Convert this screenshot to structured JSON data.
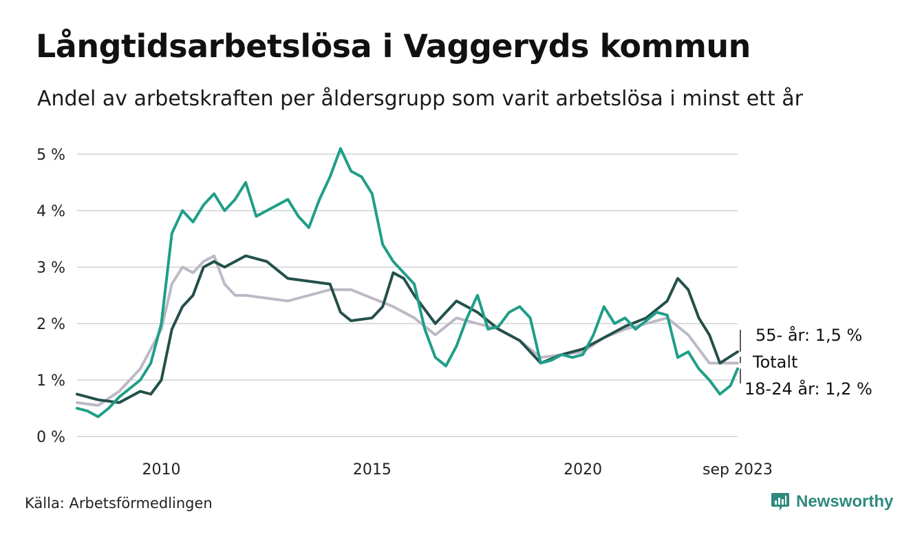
{
  "header": {
    "title": "Långtidsarbetslösa i Vaggeryds kommun",
    "subtitle": "Andel av arbetskraften per åldersgrupp som varit arbetslösa i minst ett år"
  },
  "footer": {
    "source": "Källa: Arbetsförmedlingen",
    "brand": "Newsworthy"
  },
  "colors": {
    "age_18_24": "#1f9e89",
    "age_55": "#23504a",
    "total": "#bdb9c6",
    "grid": "#dddddd"
  },
  "chart_data": {
    "type": "line",
    "title": "Långtidsarbetslösa i Vaggeryds kommun",
    "subtitle": "Andel av arbetskraften per åldersgrupp som varit arbetslösa i minst ett år",
    "ylim": [
      0,
      5
    ],
    "yticks": [
      0,
      1,
      2,
      3,
      4,
      5
    ],
    "ytick_labels": [
      "0 %",
      "1 %",
      "2 %",
      "3 %",
      "4 %",
      "5 %"
    ],
    "xlim": [
      2008.0,
      2023.67
    ],
    "xticks": [
      2010,
      2015,
      2020,
      2023.67
    ],
    "xtick_labels": [
      "2010",
      "2015",
      "2020",
      "sep 2023"
    ],
    "grid": true,
    "series": [
      {
        "name": "Totalt",
        "label": "Totalt",
        "color": "#bdb9c6",
        "x": [
          2008.0,
          2008.5,
          2009.0,
          2009.5,
          2010.0,
          2010.25,
          2010.5,
          2010.75,
          2011.0,
          2011.25,
          2011.5,
          2011.75,
          2012.0,
          2012.5,
          2013.0,
          2013.5,
          2014.0,
          2014.5,
          2015.0,
          2015.5,
          2016.0,
          2016.5,
          2017.0,
          2017.5,
          2018.0,
          2018.5,
          2019.0,
          2019.5,
          2020.0,
          2020.5,
          2021.0,
          2021.5,
          2022.0,
          2022.5,
          2023.0,
          2023.67
        ],
        "values": [
          0.6,
          0.55,
          0.8,
          1.2,
          1.9,
          2.7,
          3.0,
          2.9,
          3.1,
          3.2,
          2.7,
          2.5,
          2.5,
          2.45,
          2.4,
          2.5,
          2.6,
          2.6,
          2.45,
          2.3,
          2.1,
          1.8,
          2.1,
          2.0,
          1.9,
          1.7,
          1.4,
          1.45,
          1.5,
          1.75,
          1.9,
          2.0,
          2.1,
          1.8,
          1.3,
          1.3
        ]
      },
      {
        "name": "55- år",
        "label": "55- år: 1,5 %",
        "color": "#23504a",
        "x": [
          2008.0,
          2008.5,
          2009.0,
          2009.5,
          2009.75,
          2010.0,
          2010.25,
          2010.5,
          2010.75,
          2011.0,
          2011.25,
          2011.5,
          2011.75,
          2012.0,
          2012.5,
          2013.0,
          2013.5,
          2014.0,
          2014.25,
          2014.5,
          2015.0,
          2015.25,
          2015.5,
          2015.75,
          2016.0,
          2016.5,
          2017.0,
          2017.5,
          2018.0,
          2018.5,
          2019.0,
          2019.5,
          2020.0,
          2020.5,
          2021.0,
          2021.5,
          2022.0,
          2022.25,
          2022.5,
          2022.75,
          2023.0,
          2023.25,
          2023.67
        ],
        "values": [
          0.75,
          0.65,
          0.6,
          0.8,
          0.75,
          1.0,
          1.9,
          2.3,
          2.5,
          3.0,
          3.1,
          3.0,
          3.1,
          3.2,
          3.1,
          2.8,
          2.75,
          2.7,
          2.2,
          2.05,
          2.1,
          2.3,
          2.9,
          2.8,
          2.5,
          2.0,
          2.4,
          2.2,
          1.9,
          1.7,
          1.3,
          1.45,
          1.55,
          1.75,
          1.95,
          2.1,
          2.4,
          2.8,
          2.6,
          2.1,
          1.8,
          1.3,
          1.5
        ]
      },
      {
        "name": "18-24 år",
        "label": "18-24 år: 1,2 %",
        "color": "#1f9e89",
        "x": [
          2008.0,
          2008.25,
          2008.5,
          2008.75,
          2009.0,
          2009.25,
          2009.5,
          2009.75,
          2010.0,
          2010.25,
          2010.5,
          2010.75,
          2011.0,
          2011.25,
          2011.5,
          2011.75,
          2012.0,
          2012.25,
          2012.5,
          2012.75,
          2013.0,
          2013.25,
          2013.5,
          2013.75,
          2014.0,
          2014.25,
          2014.5,
          2014.75,
          2015.0,
          2015.25,
          2015.5,
          2015.75,
          2016.0,
          2016.25,
          2016.5,
          2016.75,
          2017.0,
          2017.25,
          2017.5,
          2017.75,
          2018.0,
          2018.25,
          2018.5,
          2018.75,
          2019.0,
          2019.25,
          2019.5,
          2019.75,
          2020.0,
          2020.25,
          2020.5,
          2020.75,
          2021.0,
          2021.25,
          2021.5,
          2021.75,
          2022.0,
          2022.25,
          2022.5,
          2022.75,
          2023.0,
          2023.25,
          2023.5,
          2023.67
        ],
        "values": [
          0.5,
          0.45,
          0.35,
          0.5,
          0.7,
          0.85,
          1.0,
          1.3,
          2.0,
          3.6,
          4.0,
          3.8,
          4.1,
          4.3,
          4.0,
          4.2,
          4.5,
          3.9,
          4.0,
          4.1,
          4.2,
          3.9,
          3.7,
          4.2,
          4.6,
          5.1,
          4.7,
          4.6,
          4.3,
          3.4,
          3.1,
          2.9,
          2.7,
          1.9,
          1.4,
          1.25,
          1.6,
          2.1,
          2.5,
          1.9,
          1.95,
          2.2,
          2.3,
          2.1,
          1.3,
          1.35,
          1.45,
          1.4,
          1.45,
          1.8,
          2.3,
          2.0,
          2.1,
          1.9,
          2.05,
          2.2,
          2.15,
          1.4,
          1.5,
          1.2,
          1.0,
          0.75,
          0.9,
          1.2
        ]
      }
    ]
  }
}
